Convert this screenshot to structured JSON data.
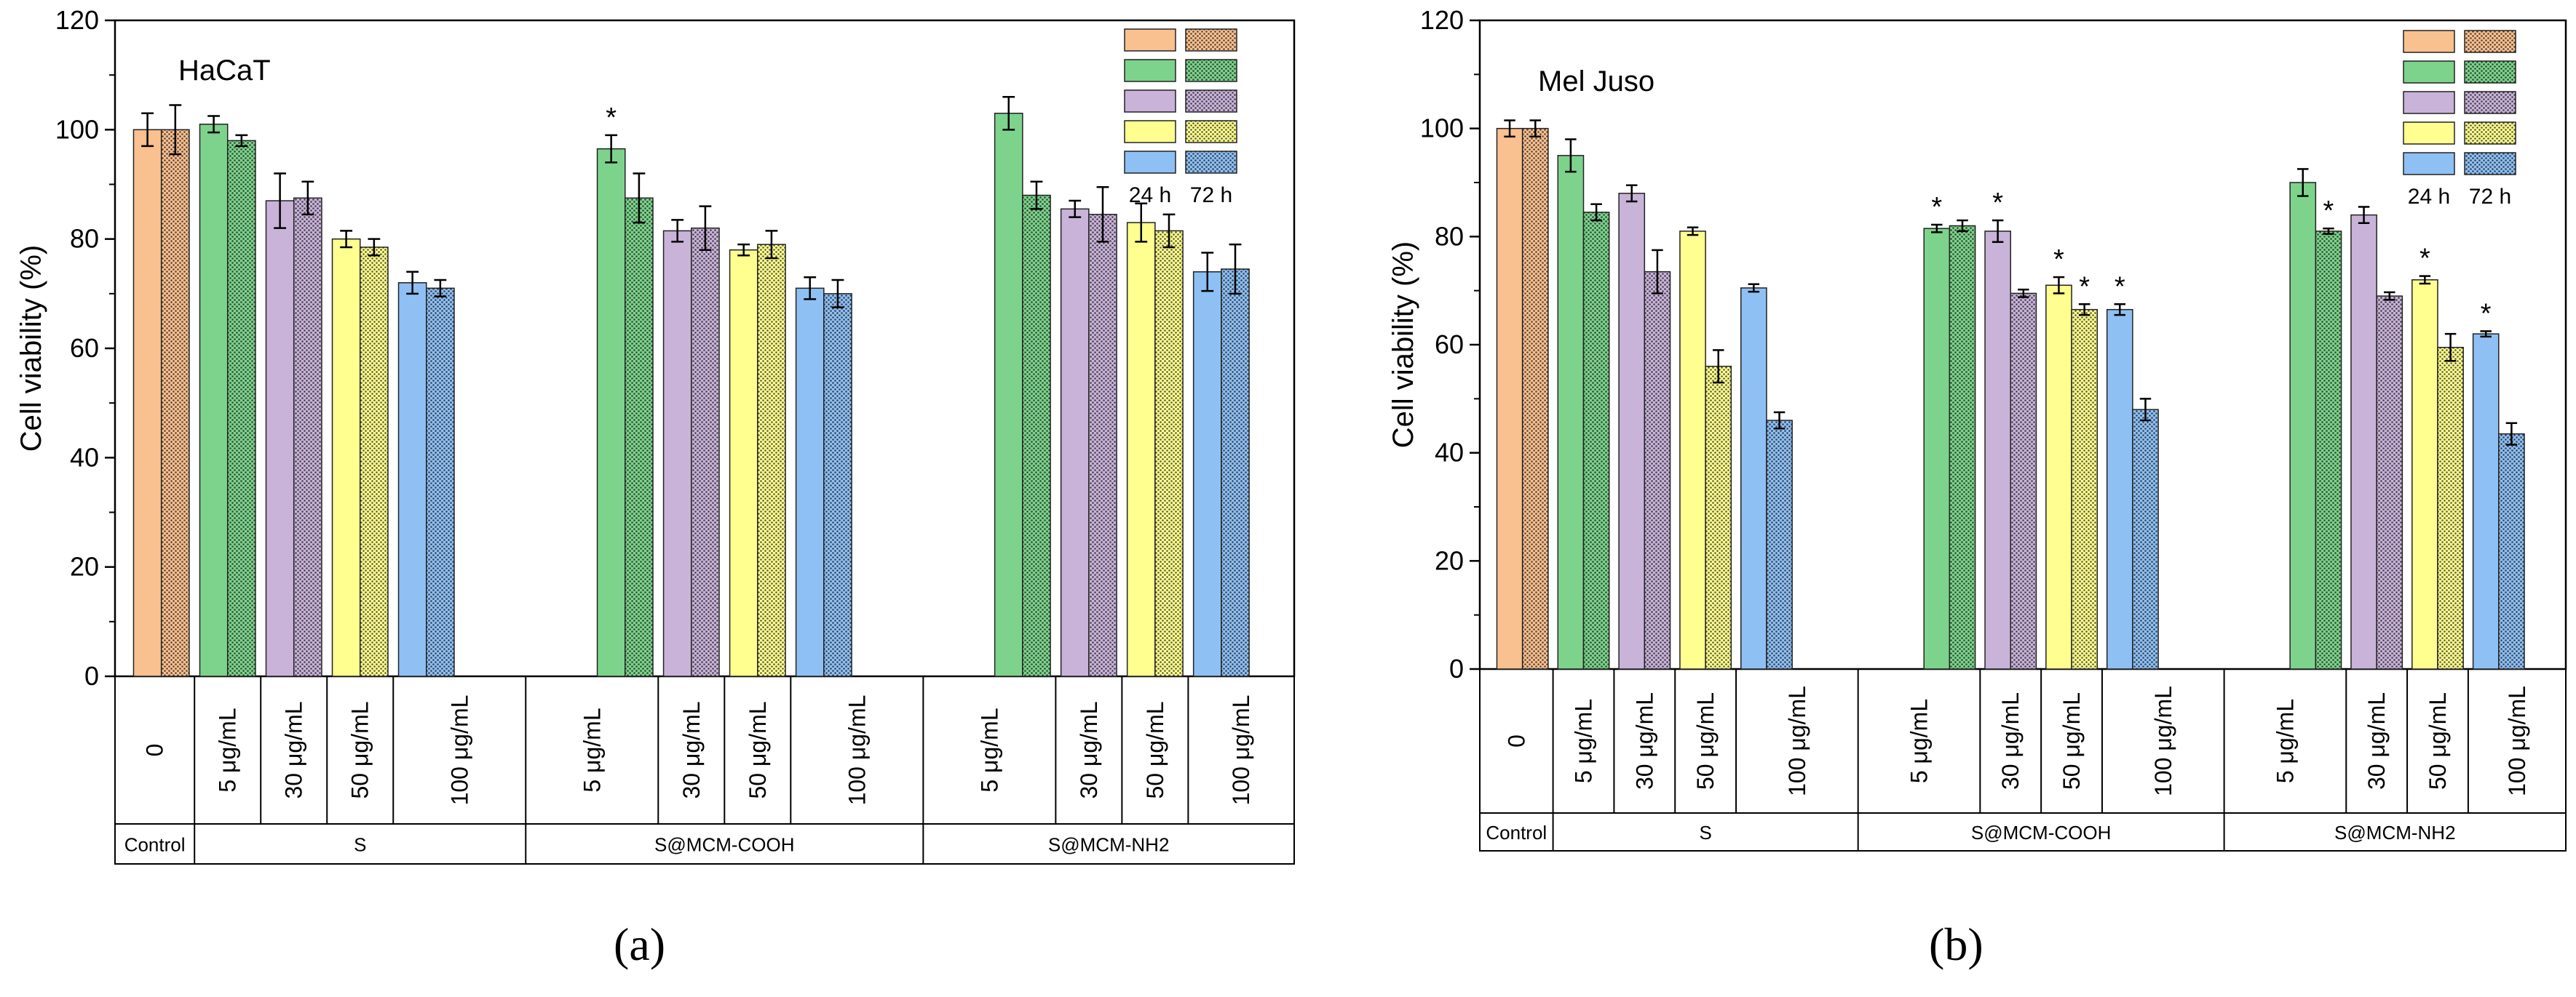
{
  "colors": {
    "control": "#f9c090",
    "c5": "#7dd38c",
    "c30": "#c9b3d9",
    "c50": "#ffff90",
    "c100": "#8fc0f4"
  },
  "captions": [
    "(a)",
    "(b)"
  ],
  "chart_data": [
    {
      "type": "bar",
      "panel": "a",
      "title": "HaCaT",
      "ylabel": "Cell viability (%)",
      "ylim": [
        0,
        120
      ],
      "yticks": [
        0,
        20,
        40,
        60,
        80,
        100,
        120
      ],
      "legend": {
        "position": "top-right",
        "labels": [
          "24 h",
          "72 h"
        ]
      },
      "groups": [
        "Control",
        "S",
        "S@MCM-COOH",
        "S@MCM-NH2"
      ],
      "categories": [
        {
          "group": 0,
          "label": "0",
          "color": "control",
          "v24": 100,
          "e24": 3,
          "v72": 100,
          "e72": 4.5
        },
        {
          "group": 1,
          "label": "5 μg/mL",
          "color": "c5",
          "v24": 101,
          "e24": 1.5,
          "v72": 98,
          "e72": 1
        },
        {
          "group": 1,
          "label": "30 μg/mL",
          "color": "c30",
          "v24": 87,
          "e24": 5,
          "v72": 87.5,
          "e72": 3
        },
        {
          "group": 1,
          "label": "50 μg/mL",
          "color": "c50",
          "v24": 80,
          "e24": 1.5,
          "v72": 78.5,
          "e72": 1.5
        },
        {
          "group": 1,
          "label": "100 μg/mL",
          "color": "c100",
          "v24": 72,
          "e24": 2,
          "v72": 71,
          "e72": 1.5
        },
        {
          "group": 2,
          "label": "5 μg/mL",
          "color": "c5",
          "v24": 96.5,
          "e24": 2.5,
          "v72": 87.5,
          "e72": 4.5,
          "star24": true
        },
        {
          "group": 2,
          "label": "30 μg/mL",
          "color": "c30",
          "v24": 81.5,
          "e24": 2,
          "v72": 82,
          "e72": 4
        },
        {
          "group": 2,
          "label": "50 μg/mL",
          "color": "c50",
          "v24": 78,
          "e24": 1,
          "v72": 79,
          "e72": 2.5
        },
        {
          "group": 2,
          "label": "100 μg/mL",
          "color": "c100",
          "v24": 71,
          "e24": 2,
          "v72": 70,
          "e72": 2.5
        },
        {
          "group": 3,
          "label": "5 μg/mL",
          "color": "c5",
          "v24": 103,
          "e24": 3,
          "v72": 88,
          "e72": 2.5
        },
        {
          "group": 3,
          "label": "30 μg/mL",
          "color": "c30",
          "v24": 85.5,
          "e24": 1.5,
          "v72": 84.5,
          "e72": 5
        },
        {
          "group": 3,
          "label": "50 μg/mL",
          "color": "c50",
          "v24": 83,
          "e24": 3.5,
          "v72": 81.5,
          "e72": 3
        },
        {
          "group": 3,
          "label": "100 μg/mL",
          "color": "c100",
          "v24": 74,
          "e24": 3.5,
          "v72": 74.5,
          "e72": 4.5
        }
      ]
    },
    {
      "type": "bar",
      "panel": "b",
      "title": "Mel Juso",
      "ylabel": "Cell viability (%)",
      "ylim": [
        0,
        120
      ],
      "yticks": [
        0,
        20,
        40,
        60,
        80,
        100,
        120
      ],
      "legend": {
        "position": "top-right",
        "labels": [
          "24 h",
          "72 h"
        ]
      },
      "groups": [
        "Control",
        "S",
        "S@MCM-COOH",
        "S@MCM-NH2"
      ],
      "categories": [
        {
          "group": 0,
          "label": "0",
          "color": "control",
          "v24": 100,
          "e24": 1.5,
          "v72": 100,
          "e72": 1.5
        },
        {
          "group": 1,
          "label": "5 μg/mL",
          "color": "c5",
          "v24": 95,
          "e24": 3,
          "v72": 84.5,
          "e72": 1.5
        },
        {
          "group": 1,
          "label": "30 μg/mL",
          "color": "c30",
          "v24": 88,
          "e24": 1.5,
          "v72": 73.5,
          "e72": 4
        },
        {
          "group": 1,
          "label": "50 μg/mL",
          "color": "c50",
          "v24": 81,
          "e24": 0.7,
          "v72": 56,
          "e72": 3
        },
        {
          "group": 1,
          "label": "100 μg/mL",
          "color": "c100",
          "v24": 70.5,
          "e24": 0.7,
          "v72": 46,
          "e72": 1.5
        },
        {
          "group": 2,
          "label": "5 μg/mL",
          "color": "c5",
          "v24": 81.5,
          "e24": 0.7,
          "v72": 82,
          "e72": 1,
          "star24": true
        },
        {
          "group": 2,
          "label": "30 μg/mL",
          "color": "c30",
          "v24": 81,
          "e24": 2,
          "v72": 69.5,
          "e72": 0.7,
          "star24": true
        },
        {
          "group": 2,
          "label": "50 μg/mL",
          "color": "c50",
          "v24": 71,
          "e24": 1.5,
          "v72": 66.5,
          "e72": 1,
          "star24": true,
          "star72": true
        },
        {
          "group": 2,
          "label": "100 μg/mL",
          "color": "c100",
          "v24": 66.5,
          "e24": 1,
          "v72": 48,
          "e72": 2,
          "star24": true
        },
        {
          "group": 3,
          "label": "5 μg/mL",
          "color": "c5",
          "v24": 90,
          "e24": 2.5,
          "v72": 81,
          "e72": 0.5,
          "star72": true
        },
        {
          "group": 3,
          "label": "30 μg/mL",
          "color": "c30",
          "v24": 84,
          "e24": 1.5,
          "v72": 69,
          "e72": 0.7
        },
        {
          "group": 3,
          "label": "50 μg/mL",
          "color": "c50",
          "v24": 72,
          "e24": 0.7,
          "v72": 59.5,
          "e72": 2.5,
          "star24": true
        },
        {
          "group": 3,
          "label": "100 μg/mL",
          "color": "c100",
          "v24": 62,
          "e24": 0.5,
          "v72": 43.5,
          "e72": 2,
          "star24": true
        }
      ]
    }
  ]
}
